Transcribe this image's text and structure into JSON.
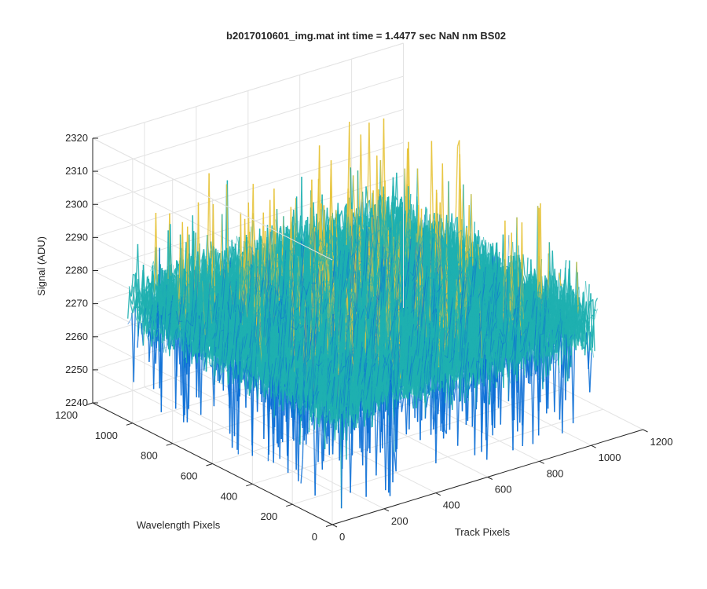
{
  "chart_data": {
    "type": "surface",
    "title": "b2017010601_img.mat int time = 1.4477 sec  NaN nm BS02",
    "xlabel": "Track Pixels",
    "ylabel": "Wavelength Pixels",
    "zlabel": "Signal (ADU)",
    "xlim": [
      0,
      1200
    ],
    "ylim": [
      0,
      1200
    ],
    "zlim": [
      2240,
      2320
    ],
    "xticks": [
      "0",
      "200",
      "400",
      "600",
      "800",
      "1000",
      "1200"
    ],
    "yticks": [
      "0",
      "200",
      "400",
      "600",
      "800",
      "1000",
      "1200"
    ],
    "zticks": [
      "2240",
      "2250",
      "2260",
      "2270",
      "2280",
      "2290",
      "2300",
      "2310",
      "2320"
    ],
    "data_extent": {
      "x": [
        0,
        1024
      ],
      "y": [
        0,
        1024
      ]
    },
    "signal_mean": 2276,
    "signal_range": [
      2240,
      2318
    ],
    "grid": true,
    "view": "3-D perspective, azimuth -37.5, elevation 30",
    "colormap": "parula",
    "colors": {
      "low": "#0c6fd6",
      "mid": "#1fb0b0",
      "high": "#e6c33a",
      "axis": "#262626",
      "grid": "#e3e3e3"
    }
  }
}
